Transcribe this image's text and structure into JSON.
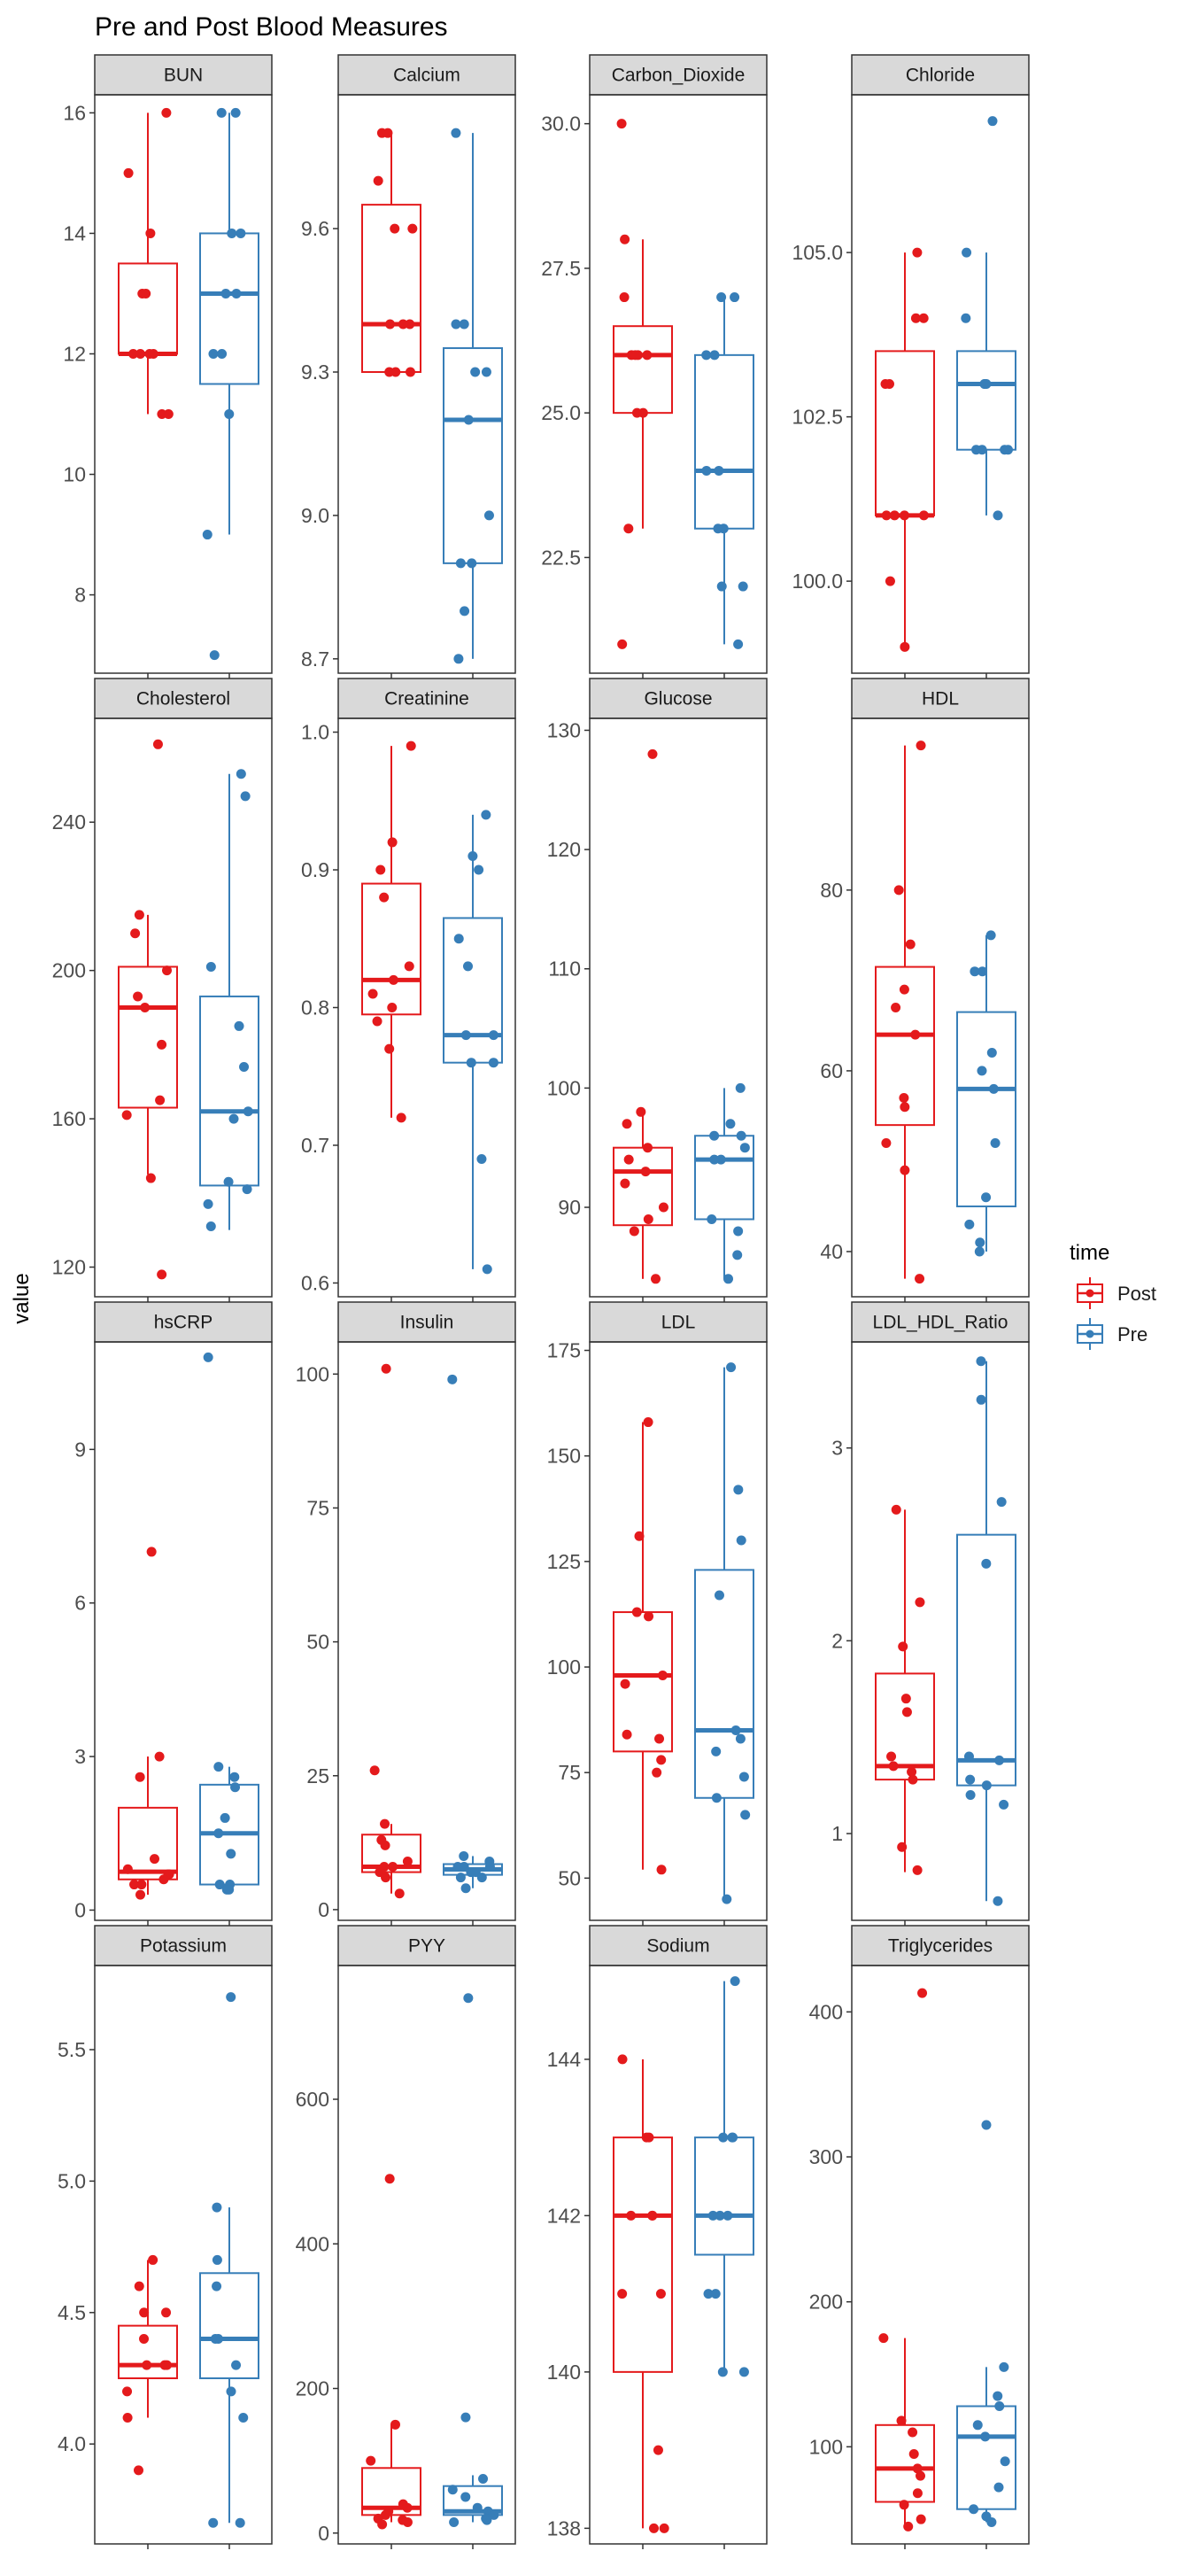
{
  "chart_data": {
    "type": "boxplot",
    "title": "Pre and Post Blood Measures",
    "ylabel": "value",
    "legend": {
      "title": "time",
      "position": "right",
      "entries": [
        {
          "name": "Post",
          "color": "#E41A1C"
        },
        {
          "name": "Pre",
          "color": "#377EB8"
        }
      ]
    },
    "categories": [
      "Post",
      "Pre"
    ],
    "colors": {
      "Post": "#E41A1C",
      "Pre": "#377EB8",
      "strip_fill": "#D9D9D9",
      "panel_border": "#333333"
    },
    "panels": [
      {
        "name": "BUN",
        "ylim": [
          6.7,
          16.3
        ],
        "ticks": [
          8,
          10,
          12,
          14,
          16
        ],
        "groups": {
          "Post": {
            "box": {
              "min": 11,
              "q1": 12,
              "median": 12,
              "q3": 13.5,
              "max": 16
            },
            "points": [
              16,
              15,
              14,
              13,
              13,
              12,
              12,
              12,
              12,
              11,
              11
            ]
          },
          "Pre": {
            "box": {
              "min": 9,
              "q1": 11.5,
              "median": 13,
              "q3": 14,
              "max": 16
            },
            "points": [
              16,
              16,
              14,
              14,
              13,
              13,
              12,
              12,
              11,
              9,
              7
            ]
          }
        }
      },
      {
        "name": "Calcium",
        "ylim": [
          8.67,
          9.88
        ],
        "ticks": [
          8.7,
          9.0,
          9.3,
          9.6
        ],
        "groups": {
          "Post": {
            "box": {
              "min": 9.3,
              "q1": 9.3,
              "median": 9.4,
              "q3": 9.65,
              "max": 9.8
            },
            "points": [
              9.8,
              9.8,
              9.7,
              9.6,
              9.6,
              9.4,
              9.4,
              9.4,
              9.3,
              9.3,
              9.3
            ]
          },
          "Pre": {
            "box": {
              "min": 8.7,
              "q1": 8.9,
              "median": 9.2,
              "q3": 9.35,
              "max": 9.8
            },
            "points": [
              9.8,
              9.4,
              9.4,
              9.3,
              9.3,
              9.2,
              9.0,
              8.9,
              8.9,
              8.8,
              8.7
            ]
          }
        }
      },
      {
        "name": "Carbon_Dioxide",
        "ylim": [
          20.5,
          30.5
        ],
        "ticks": [
          22.5,
          25.0,
          27.5,
          30.0
        ],
        "groups": {
          "Post": {
            "box": {
              "min": 23,
              "q1": 25,
              "median": 26,
              "q3": 26.5,
              "max": 28
            },
            "points": [
              30,
              28,
              27,
              26,
              26,
              26,
              26,
              25,
              25,
              23,
              21
            ]
          },
          "Pre": {
            "box": {
              "min": 21,
              "q1": 23,
              "median": 24,
              "q3": 26,
              "max": 27
            },
            "points": [
              27,
              27,
              26,
              26,
              24,
              24,
              23,
              23,
              22,
              22,
              21
            ]
          }
        }
      },
      {
        "name": "Chloride",
        "ylim": [
          98.6,
          107.4
        ],
        "ticks": [
          100.0,
          102.5,
          105.0
        ],
        "groups": {
          "Post": {
            "box": {
              "min": 99,
              "q1": 101,
              "median": 101,
              "q3": 103.5,
              "max": 105
            },
            "points": [
              105,
              104,
              104,
              103,
              103,
              101,
              101,
              101,
              101,
              100,
              99
            ]
          },
          "Pre": {
            "box": {
              "min": 101,
              "q1": 102,
              "median": 103,
              "q3": 103.5,
              "max": 105
            },
            "points": [
              107,
              105,
              104,
              103,
              103,
              103,
              102,
              102,
              102,
              102,
              101
            ]
          }
        }
      },
      {
        "name": "Cholesterol",
        "ylim": [
          112,
          268
        ],
        "ticks": [
          120,
          160,
          200,
          240
        ],
        "groups": {
          "Post": {
            "box": {
              "min": 145,
              "q1": 163,
              "median": 190,
              "q3": 201,
              "max": 215
            },
            "points": [
              261,
              215,
              210,
              200,
              193,
              190,
              180,
              165,
              161,
              144,
              118
            ]
          },
          "Pre": {
            "box": {
              "min": 130,
              "q1": 142,
              "median": 162,
              "q3": 193,
              "max": 253
            },
            "points": [
              253,
              247,
              201,
              185,
              174,
              162,
              160,
              143,
              141,
              137,
              131
            ]
          }
        }
      },
      {
        "name": "Creatinine",
        "ylim": [
          0.59,
          1.01
        ],
        "ticks": [
          0.6,
          0.7,
          0.8,
          0.9,
          1.0
        ],
        "groups": {
          "Post": {
            "box": {
              "min": 0.72,
              "q1": 0.795,
              "median": 0.82,
              "q3": 0.89,
              "max": 0.99
            },
            "points": [
              0.99,
              0.92,
              0.9,
              0.88,
              0.83,
              0.82,
              0.81,
              0.8,
              0.79,
              0.77,
              0.72
            ]
          },
          "Pre": {
            "box": {
              "min": 0.61,
              "q1": 0.76,
              "median": 0.78,
              "q3": 0.865,
              "max": 0.94
            },
            "points": [
              0.94,
              0.91,
              0.9,
              0.85,
              0.83,
              0.78,
              0.78,
              0.76,
              0.76,
              0.69,
              0.61
            ]
          }
        }
      },
      {
        "name": "Glucose",
        "ylim": [
          82.5,
          131
        ],
        "ticks": [
          90,
          100,
          110,
          120,
          130
        ],
        "groups": {
          "Post": {
            "box": {
              "min": 84,
              "q1": 88.5,
              "median": 93,
              "q3": 95,
              "max": 98
            },
            "points": [
              128,
              98,
              97,
              95,
              94,
              93,
              92,
              90,
              89,
              88,
              84
            ]
          },
          "Pre": {
            "box": {
              "min": 84,
              "q1": 89,
              "median": 94,
              "q3": 96,
              "max": 100
            },
            "points": [
              100,
              97,
              96,
              96,
              95,
              94,
              94,
              89,
              88,
              86,
              84
            ]
          }
        }
      },
      {
        "name": "HDL",
        "ylim": [
          35,
          99
        ],
        "ticks": [
          40,
          60,
          80
        ],
        "groups": {
          "Post": {
            "box": {
              "min": 37,
              "q1": 54,
              "median": 64,
              "q3": 71.5,
              "max": 96
            },
            "points": [
              96,
              80,
              74,
              69,
              67,
              64,
              57,
              56,
              52,
              49,
              37
            ]
          },
          "Pre": {
            "box": {
              "min": 40,
              "q1": 45,
              "median": 58,
              "q3": 66.5,
              "max": 75
            },
            "points": [
              75,
              71,
              71,
              62,
              60,
              58,
              52,
              46,
              43,
              41,
              40
            ]
          }
        }
      },
      {
        "name": "hsCRP",
        "ylim": [
          -0.2,
          11.1
        ],
        "ticks": [
          0,
          3,
          6,
          9
        ],
        "groups": {
          "Post": {
            "box": {
              "min": 0.3,
              "q1": 0.6,
              "median": 0.75,
              "q3": 2.0,
              "max": 3.0
            },
            "points": [
              7.0,
              3.0,
              2.6,
              1.0,
              0.8,
              0.7,
              0.7,
              0.6,
              0.5,
              0.5,
              0.3
            ]
          },
          "Pre": {
            "box": {
              "min": 0.4,
              "q1": 0.5,
              "median": 1.5,
              "q3": 2.45,
              "max": 2.8
            },
            "points": [
              10.8,
              2.8,
              2.6,
              2.4,
              1.8,
              1.5,
              1.1,
              0.5,
              0.5,
              0.4,
              0.4
            ]
          }
        }
      },
      {
        "name": "Insulin",
        "ylim": [
          -2,
          106
        ],
        "ticks": [
          0,
          25,
          50,
          75,
          100
        ],
        "groups": {
          "Post": {
            "box": {
              "min": 3,
              "q1": 7,
              "median": 8,
              "q3": 14,
              "max": 16
            },
            "points": [
              101,
              26,
              16,
              13,
              12,
              9,
              8,
              8,
              7,
              6,
              3
            ]
          },
          "Pre": {
            "box": {
              "min": 4,
              "q1": 6.5,
              "median": 7.5,
              "q3": 8.5,
              "max": 10
            },
            "points": [
              99,
              10,
              9,
              8,
              8,
              8,
              7,
              7,
              6,
              6,
              4
            ]
          }
        }
      },
      {
        "name": "LDL",
        "ylim": [
          40,
          177
        ],
        "ticks": [
          50,
          75,
          100,
          125,
          150,
          175
        ],
        "groups": {
          "Post": {
            "box": {
              "min": 52,
              "q1": 80,
              "median": 98,
              "q3": 113,
              "max": 158
            },
            "points": [
              158,
              131,
              113,
              112,
              98,
              96,
              84,
              83,
              78,
              75,
              52
            ]
          },
          "Pre": {
            "box": {
              "min": 45,
              "q1": 69,
              "median": 85,
              "q3": 123,
              "max": 171
            },
            "points": [
              171,
              142,
              130,
              117,
              85,
              83,
              80,
              74,
              69,
              65,
              45
            ]
          }
        }
      },
      {
        "name": "LDL_HDL_Ratio",
        "ylim": [
          0.55,
          3.55
        ],
        "ticks": [
          1,
          2,
          3
        ],
        "groups": {
          "Post": {
            "box": {
              "min": 0.8,
              "q1": 1.28,
              "median": 1.35,
              "q3": 1.83,
              "max": 2.68
            },
            "points": [
              2.68,
              2.2,
              1.97,
              1.7,
              1.63,
              1.4,
              1.35,
              1.32,
              1.28,
              0.93,
              0.81
            ]
          },
          "Pre": {
            "box": {
              "min": 0.65,
              "q1": 1.25,
              "median": 1.38,
              "q3": 2.55,
              "max": 3.45
            },
            "points": [
              3.45,
              3.25,
              2.72,
              2.4,
              1.4,
              1.38,
              1.28,
              1.25,
              1.2,
              1.15,
              0.65
            ]
          }
        }
      },
      {
        "name": "Potassium",
        "ylim": [
          3.62,
          5.82
        ],
        "ticks": [
          4.0,
          4.5,
          5.0,
          5.5
        ],
        "groups": {
          "Post": {
            "box": {
              "min": 4.1,
              "q1": 4.25,
              "median": 4.3,
              "q3": 4.45,
              "max": 4.7
            },
            "points": [
              4.7,
              4.6,
              4.5,
              4.5,
              4.4,
              4.3,
              4.3,
              4.3,
              4.2,
              4.1,
              3.9
            ]
          },
          "Pre": {
            "box": {
              "min": 3.7,
              "q1": 4.25,
              "median": 4.4,
              "q3": 4.65,
              "max": 4.9
            },
            "points": [
              5.7,
              4.9,
              4.7,
              4.6,
              4.4,
              4.4,
              4.3,
              4.2,
              4.1,
              3.7,
              3.7
            ]
          }
        }
      },
      {
        "name": "PYY",
        "ylim": [
          -15,
          785
        ],
        "ticks": [
          0,
          200,
          400,
          600
        ],
        "groups": {
          "Post": {
            "box": {
              "min": 15,
              "q1": 25,
              "median": 35,
              "q3": 90,
              "max": 150
            },
            "points": [
              490,
              150,
              100,
              40,
              35,
              30,
              25,
              20,
              18,
              15,
              12
            ]
          },
          "Pre": {
            "box": {
              "min": 15,
              "q1": 25,
              "median": 30,
              "q3": 65,
              "max": 80
            },
            "points": [
              740,
              160,
              75,
              60,
              50,
              35,
              30,
              25,
              20,
              18,
              15
            ]
          }
        }
      },
      {
        "name": "Sodium",
        "ylim": [
          137.8,
          145.2
        ],
        "ticks": [
          138,
          140,
          142,
          144
        ],
        "groups": {
          "Post": {
            "box": {
              "min": 138,
              "q1": 140,
              "median": 142,
              "q3": 143,
              "max": 144
            },
            "points": [
              144,
              143,
              143,
              142,
              142,
              142,
              141,
              141,
              139,
              138,
              138
            ]
          },
          "Pre": {
            "box": {
              "min": 140,
              "q1": 141.5,
              "median": 142,
              "q3": 143,
              "max": 145
            },
            "points": [
              145,
              143,
              143,
              143,
              142,
              142,
              142,
              141,
              141,
              140,
              140
            ]
          }
        }
      },
      {
        "name": "Triglycerides",
        "ylim": [
          33,
          432
        ],
        "ticks": [
          100,
          200,
          300,
          400
        ],
        "groups": {
          "Post": {
            "box": {
              "min": 45,
              "q1": 62,
              "median": 85,
              "q3": 115,
              "max": 175
            },
            "points": [
              413,
              175,
              118,
              110,
              95,
              85,
              80,
              68,
              60,
              50,
              45
            ]
          },
          "Pre": {
            "box": {
              "min": 48,
              "q1": 57,
              "median": 107,
              "q3": 128,
              "max": 155
            },
            "points": [
              322,
              155,
              135,
              128,
              115,
              107,
              90,
              72,
              57,
              52,
              48
            ]
          }
        }
      }
    ]
  }
}
